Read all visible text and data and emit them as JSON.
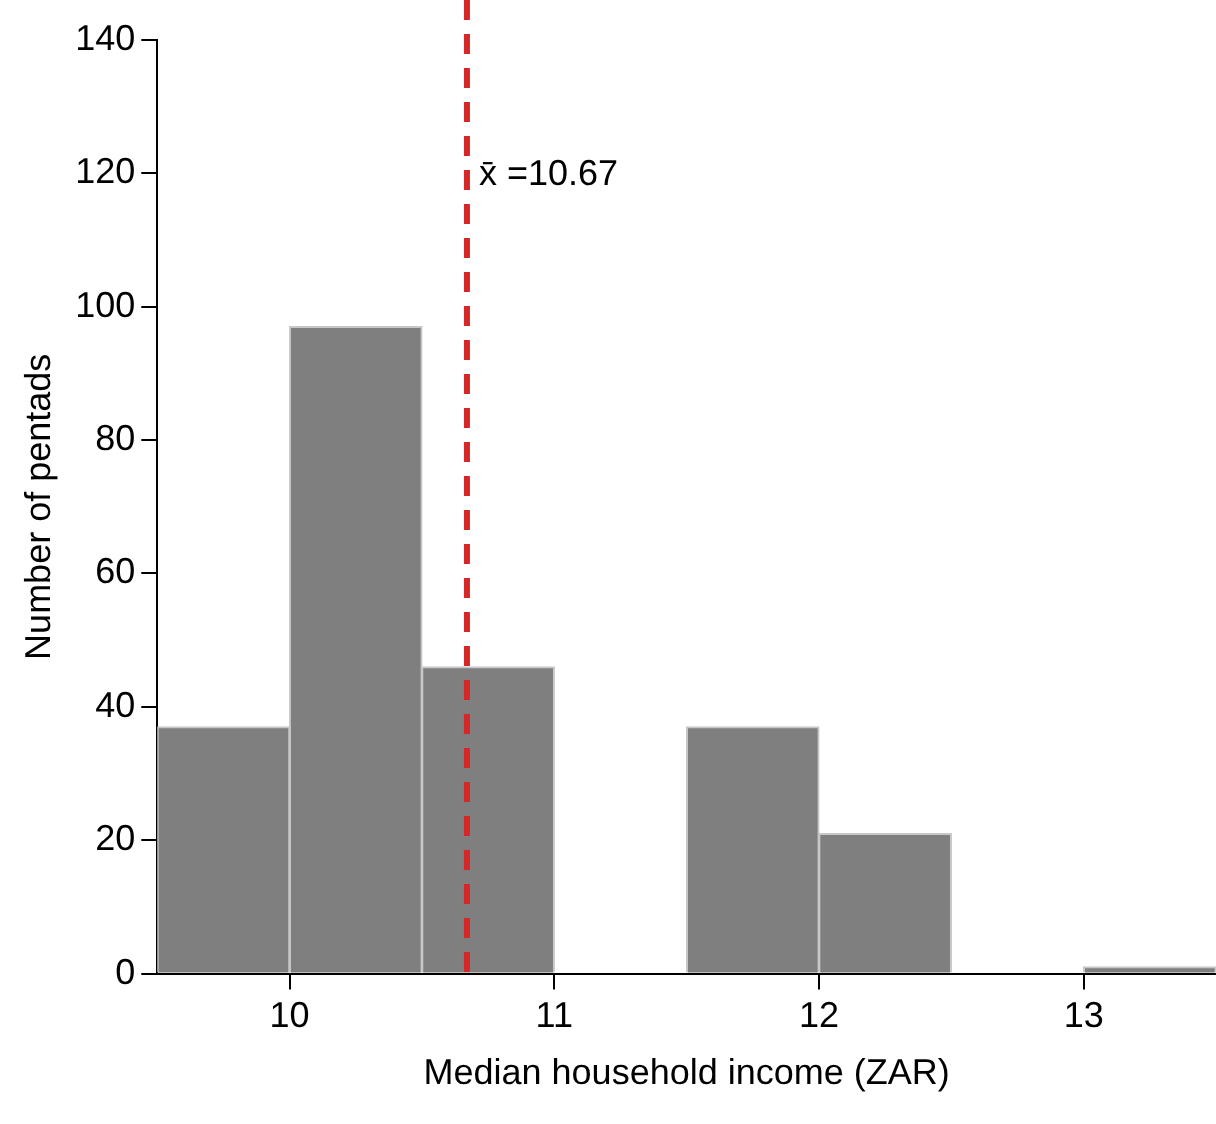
{
  "chart_data": {
    "type": "histogram",
    "xlabel": "Median household income (ZAR)",
    "ylabel": "Number of pentads",
    "bins": [
      9.5,
      10,
      10.5,
      11,
      11.5,
      12,
      12.5,
      13,
      13.5
    ],
    "values": [
      37,
      97,
      46,
      0,
      37,
      21,
      0,
      1
    ],
    "color": "#7f7f7f",
    "xlim": [
      9.5,
      13.5
    ],
    "xticks": [
      10,
      11,
      12,
      13
    ],
    "ylim": [
      0,
      140
    ],
    "yticks": [
      0,
      20,
      40,
      60,
      80,
      100,
      120,
      140
    ],
    "grid": false,
    "legend": false,
    "ref_lines": [
      {
        "axis": "x",
        "value": 10.67,
        "label": "x̄ =10.67",
        "color": "#d62728",
        "line_style": "dashed"
      }
    ]
  }
}
